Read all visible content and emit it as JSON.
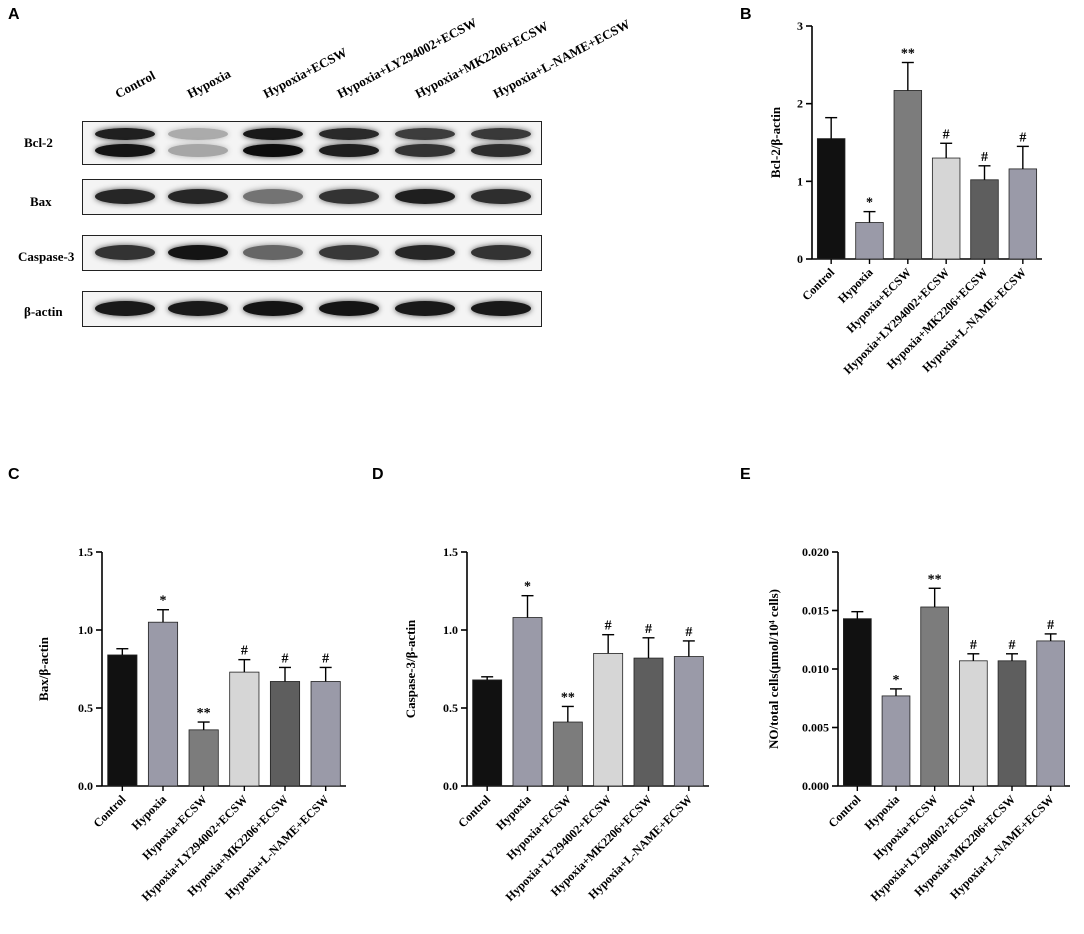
{
  "panel_letters": [
    "A",
    "B",
    "C",
    "D",
    "E"
  ],
  "blot": {
    "lanes": [
      "Control",
      "Hypoxia",
      "Hypoxia+ECSW",
      "Hypoxia+LY294002+ECSW",
      "Hypoxia+MK2206+ECSW",
      "Hypoxia+L-NAME+ECSW"
    ],
    "rows": [
      "Bcl-2",
      "Bax",
      "Caspase-3",
      "β-actin"
    ],
    "band_intensity": [
      [
        0.92,
        0.35,
        0.95,
        0.88,
        0.8,
        0.82
      ],
      [
        0.85,
        0.85,
        0.55,
        0.8,
        0.88,
        0.82
      ],
      [
        0.8,
        0.92,
        0.6,
        0.78,
        0.85,
        0.8
      ],
      [
        0.9,
        0.9,
        0.92,
        0.92,
        0.9,
        0.9
      ]
    ]
  },
  "chart_data": [
    {
      "type": "bar",
      "panel": "B",
      "categories": [
        "Control",
        "Hypoxia",
        "Hypoxia+ECSW",
        "Hypoxia+LY294002+ECSW",
        "Hypoxia+MK2206+ECSW",
        "Hypoxia+L-NAME+ECSW"
      ],
      "values": [
        1.55,
        0.47,
        2.17,
        1.3,
        1.02,
        1.16
      ],
      "errors": [
        0.27,
        0.14,
        0.36,
        0.19,
        0.18,
        0.29
      ],
      "annotations": [
        "",
        "*",
        "**",
        "#",
        "#",
        "#"
      ],
      "colors": [
        "#111111",
        "#9a9aa8",
        "#7c7c7c",
        "#d6d6d6",
        "#5e5e5e",
        "#9a9aa8"
      ],
      "ylabel": "Bcl-2/β-actin",
      "ylim": [
        0,
        3
      ],
      "yticks": [
        "0",
        "1",
        "2",
        "3"
      ]
    },
    {
      "type": "bar",
      "panel": "C",
      "categories": [
        "Control",
        "Hypoxia",
        "Hypoxia+ECSW",
        "Hypoxia+LY294002+ECSW",
        "Hypoxia+MK2206+ECSW",
        "Hypoxia+L-NAME+ECSW"
      ],
      "values": [
        0.84,
        1.05,
        0.36,
        0.73,
        0.67,
        0.67
      ],
      "errors": [
        0.04,
        0.08,
        0.05,
        0.08,
        0.09,
        0.09
      ],
      "annotations": [
        "",
        "*",
        "**",
        "#",
        "#",
        "#"
      ],
      "colors": [
        "#111111",
        "#9a9aa8",
        "#7c7c7c",
        "#d6d6d6",
        "#5e5e5e",
        "#9a9aa8"
      ],
      "ylabel": "Bax/β-actin",
      "ylim": [
        0,
        1.5
      ],
      "yticks": [
        "0.0",
        "0.5",
        "1.0",
        "1.5"
      ]
    },
    {
      "type": "bar",
      "panel": "D",
      "categories": [
        "Control",
        "Hypoxia",
        "Hypoxia+ECSW",
        "Hypoxia+LY294002+ECSW",
        "Hypoxia+MK2206+ECSW",
        "Hypoxia+L-NAME+ECSW"
      ],
      "values": [
        0.68,
        1.08,
        0.41,
        0.85,
        0.82,
        0.83
      ],
      "errors": [
        0.02,
        0.14,
        0.1,
        0.12,
        0.13,
        0.1
      ],
      "annotations": [
        "",
        "*",
        "**",
        "#",
        "#",
        "#"
      ],
      "colors": [
        "#111111",
        "#9a9aa8",
        "#7c7c7c",
        "#d6d6d6",
        "#5e5e5e",
        "#9a9aa8"
      ],
      "ylabel": "Caspase-3/β-actin",
      "ylim": [
        0,
        1.5
      ],
      "yticks": [
        "0.0",
        "0.5",
        "1.0",
        "1.5"
      ]
    },
    {
      "type": "bar",
      "panel": "E",
      "categories": [
        "Control",
        "Hypoxia",
        "Hypoxia+ECSW",
        "Hypoxia+LY294002+ECSW",
        "Hypoxia+MK2206+ECSW",
        "Hypoxia+L-NAME+ECSW"
      ],
      "values": [
        0.0143,
        0.0077,
        0.0153,
        0.0107,
        0.0107,
        0.0124
      ],
      "errors": [
        0.0006,
        0.0006,
        0.0016,
        0.0006,
        0.0006,
        0.0006
      ],
      "annotations": [
        "",
        "*",
        "**",
        "#",
        "#",
        "#"
      ],
      "colors": [
        "#111111",
        "#9a9aa8",
        "#7c7c7c",
        "#d6d6d6",
        "#5e5e5e",
        "#9a9aa8"
      ],
      "ylabel": "NO/total cells(μmol/10⁴ cells)",
      "ylim": [
        0,
        0.02
      ],
      "yticks": [
        "0.000",
        "0.005",
        "0.010",
        "0.015",
        "0.020"
      ]
    }
  ]
}
